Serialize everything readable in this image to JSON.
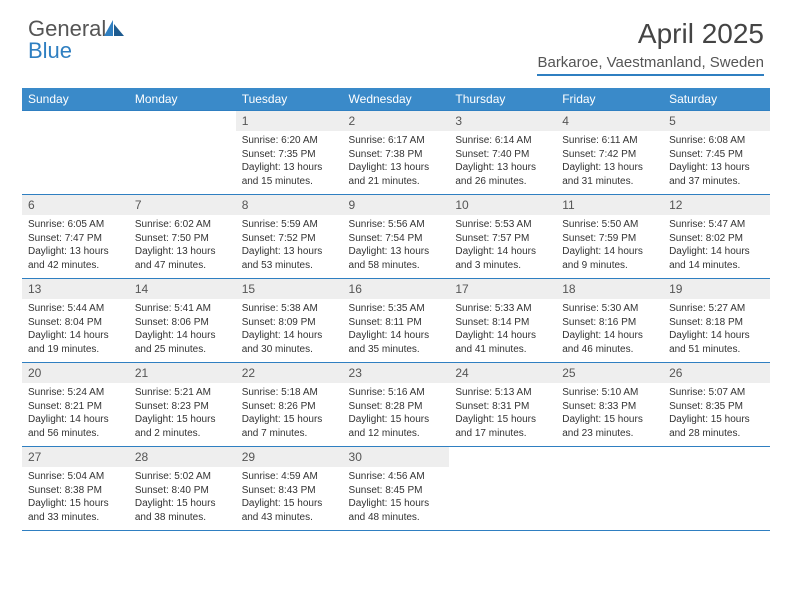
{
  "logo": {
    "text1": "General",
    "text2": "Blue"
  },
  "title": "April 2025",
  "location": "Barkaroe, Vaestmanland, Sweden",
  "colors": {
    "header_bg": "#3a8ac9",
    "border": "#2f7fc1",
    "daynum_bg": "#eeeeee",
    "text": "#333333",
    "logo_gray": "#555555",
    "logo_blue": "#2f7fc1"
  },
  "weekdays": [
    "Sunday",
    "Monday",
    "Tuesday",
    "Wednesday",
    "Thursday",
    "Friday",
    "Saturday"
  ],
  "weeks": [
    [
      {
        "n": "",
        "lines": []
      },
      {
        "n": "",
        "lines": []
      },
      {
        "n": "1",
        "lines": [
          "Sunrise: 6:20 AM",
          "Sunset: 7:35 PM",
          "Daylight: 13 hours",
          "and 15 minutes."
        ]
      },
      {
        "n": "2",
        "lines": [
          "Sunrise: 6:17 AM",
          "Sunset: 7:38 PM",
          "Daylight: 13 hours",
          "and 21 minutes."
        ]
      },
      {
        "n": "3",
        "lines": [
          "Sunrise: 6:14 AM",
          "Sunset: 7:40 PM",
          "Daylight: 13 hours",
          "and 26 minutes."
        ]
      },
      {
        "n": "4",
        "lines": [
          "Sunrise: 6:11 AM",
          "Sunset: 7:42 PM",
          "Daylight: 13 hours",
          "and 31 minutes."
        ]
      },
      {
        "n": "5",
        "lines": [
          "Sunrise: 6:08 AM",
          "Sunset: 7:45 PM",
          "Daylight: 13 hours",
          "and 37 minutes."
        ]
      }
    ],
    [
      {
        "n": "6",
        "lines": [
          "Sunrise: 6:05 AM",
          "Sunset: 7:47 PM",
          "Daylight: 13 hours",
          "and 42 minutes."
        ]
      },
      {
        "n": "7",
        "lines": [
          "Sunrise: 6:02 AM",
          "Sunset: 7:50 PM",
          "Daylight: 13 hours",
          "and 47 minutes."
        ]
      },
      {
        "n": "8",
        "lines": [
          "Sunrise: 5:59 AM",
          "Sunset: 7:52 PM",
          "Daylight: 13 hours",
          "and 53 minutes."
        ]
      },
      {
        "n": "9",
        "lines": [
          "Sunrise: 5:56 AM",
          "Sunset: 7:54 PM",
          "Daylight: 13 hours",
          "and 58 minutes."
        ]
      },
      {
        "n": "10",
        "lines": [
          "Sunrise: 5:53 AM",
          "Sunset: 7:57 PM",
          "Daylight: 14 hours",
          "and 3 minutes."
        ]
      },
      {
        "n": "11",
        "lines": [
          "Sunrise: 5:50 AM",
          "Sunset: 7:59 PM",
          "Daylight: 14 hours",
          "and 9 minutes."
        ]
      },
      {
        "n": "12",
        "lines": [
          "Sunrise: 5:47 AM",
          "Sunset: 8:02 PM",
          "Daylight: 14 hours",
          "and 14 minutes."
        ]
      }
    ],
    [
      {
        "n": "13",
        "lines": [
          "Sunrise: 5:44 AM",
          "Sunset: 8:04 PM",
          "Daylight: 14 hours",
          "and 19 minutes."
        ]
      },
      {
        "n": "14",
        "lines": [
          "Sunrise: 5:41 AM",
          "Sunset: 8:06 PM",
          "Daylight: 14 hours",
          "and 25 minutes."
        ]
      },
      {
        "n": "15",
        "lines": [
          "Sunrise: 5:38 AM",
          "Sunset: 8:09 PM",
          "Daylight: 14 hours",
          "and 30 minutes."
        ]
      },
      {
        "n": "16",
        "lines": [
          "Sunrise: 5:35 AM",
          "Sunset: 8:11 PM",
          "Daylight: 14 hours",
          "and 35 minutes."
        ]
      },
      {
        "n": "17",
        "lines": [
          "Sunrise: 5:33 AM",
          "Sunset: 8:14 PM",
          "Daylight: 14 hours",
          "and 41 minutes."
        ]
      },
      {
        "n": "18",
        "lines": [
          "Sunrise: 5:30 AM",
          "Sunset: 8:16 PM",
          "Daylight: 14 hours",
          "and 46 minutes."
        ]
      },
      {
        "n": "19",
        "lines": [
          "Sunrise: 5:27 AM",
          "Sunset: 8:18 PM",
          "Daylight: 14 hours",
          "and 51 minutes."
        ]
      }
    ],
    [
      {
        "n": "20",
        "lines": [
          "Sunrise: 5:24 AM",
          "Sunset: 8:21 PM",
          "Daylight: 14 hours",
          "and 56 minutes."
        ]
      },
      {
        "n": "21",
        "lines": [
          "Sunrise: 5:21 AM",
          "Sunset: 8:23 PM",
          "Daylight: 15 hours",
          "and 2 minutes."
        ]
      },
      {
        "n": "22",
        "lines": [
          "Sunrise: 5:18 AM",
          "Sunset: 8:26 PM",
          "Daylight: 15 hours",
          "and 7 minutes."
        ]
      },
      {
        "n": "23",
        "lines": [
          "Sunrise: 5:16 AM",
          "Sunset: 8:28 PM",
          "Daylight: 15 hours",
          "and 12 minutes."
        ]
      },
      {
        "n": "24",
        "lines": [
          "Sunrise: 5:13 AM",
          "Sunset: 8:31 PM",
          "Daylight: 15 hours",
          "and 17 minutes."
        ]
      },
      {
        "n": "25",
        "lines": [
          "Sunrise: 5:10 AM",
          "Sunset: 8:33 PM",
          "Daylight: 15 hours",
          "and 23 minutes."
        ]
      },
      {
        "n": "26",
        "lines": [
          "Sunrise: 5:07 AM",
          "Sunset: 8:35 PM",
          "Daylight: 15 hours",
          "and 28 minutes."
        ]
      }
    ],
    [
      {
        "n": "27",
        "lines": [
          "Sunrise: 5:04 AM",
          "Sunset: 8:38 PM",
          "Daylight: 15 hours",
          "and 33 minutes."
        ]
      },
      {
        "n": "28",
        "lines": [
          "Sunrise: 5:02 AM",
          "Sunset: 8:40 PM",
          "Daylight: 15 hours",
          "and 38 minutes."
        ]
      },
      {
        "n": "29",
        "lines": [
          "Sunrise: 4:59 AM",
          "Sunset: 8:43 PM",
          "Daylight: 15 hours",
          "and 43 minutes."
        ]
      },
      {
        "n": "30",
        "lines": [
          "Sunrise: 4:56 AM",
          "Sunset: 8:45 PM",
          "Daylight: 15 hours",
          "and 48 minutes."
        ]
      },
      {
        "n": "",
        "lines": []
      },
      {
        "n": "",
        "lines": []
      },
      {
        "n": "",
        "lines": []
      }
    ]
  ]
}
